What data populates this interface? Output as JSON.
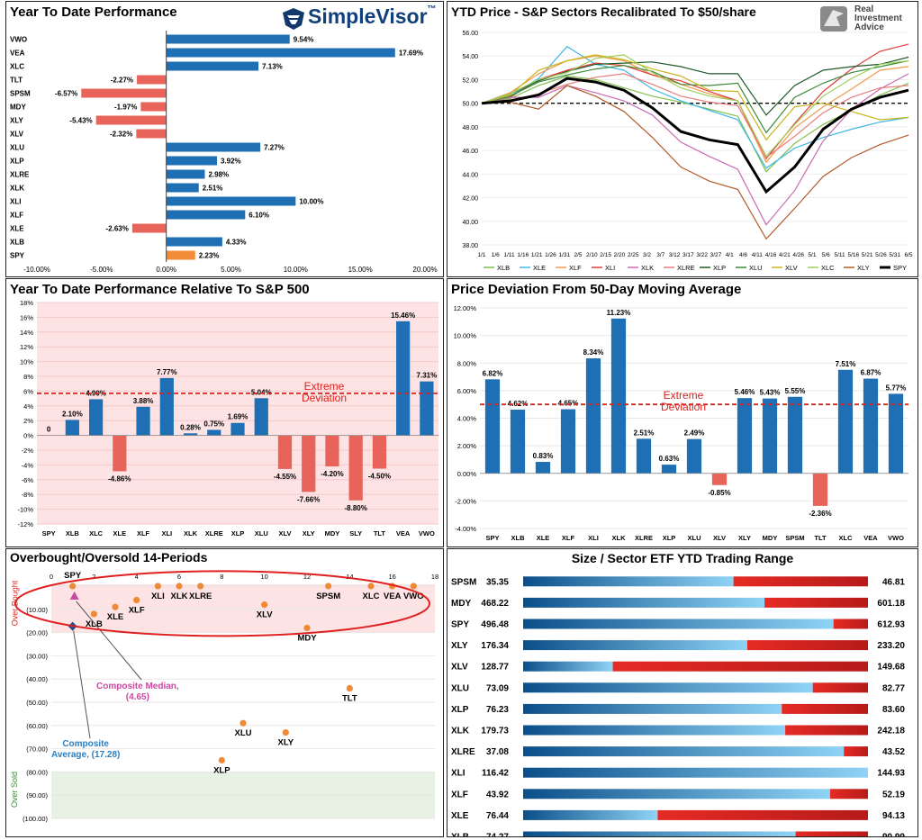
{
  "panels": {
    "ytd": {
      "title": "Year To Date Performance",
      "brand": "SimpleVisor",
      "brand_tm": "™"
    },
    "recal": {
      "title": "YTD Price - S&P Sectors Recalibrated To $50/share",
      "brand_line1": "Real",
      "brand_line2": "Investment",
      "brand_line3": "Advice"
    },
    "rel": {
      "title": "Year To Date Performance Relative To S&P 500",
      "extreme_line1": "Extreme",
      "extreme_line2": "Deviation"
    },
    "dev": {
      "title": "Price Deviation From 50-Day Moving Average",
      "extreme_line1": "Extreme",
      "extreme_line2": "Deviation"
    },
    "ob": {
      "title": "Overbought/Oversold 14-Periods",
      "side_top": "Over Bought",
      "side_bottom": "Over Sold",
      "median_line1": "Composite Median,",
      "median_line2": "(4.65)",
      "average_line1": "Composite",
      "average_line2": "Average,  (17.28)"
    },
    "range": {
      "title": "Size / Sector ETF YTD Trading Range"
    }
  },
  "colors": {
    "positive": "#1f6fb5",
    "negative": "#e8645a",
    "spy": "#f28c38",
    "extreme": "#e0201b",
    "overbought_zone": "#fde3e3",
    "oversold_zone": "#e7f1e4",
    "dot": "#ee8a35",
    "median": "#c84a9e",
    "average": "#2b7fc1",
    "range_red": "#e22a26"
  },
  "chart_data": [
    {
      "id": "ytd",
      "type": "bar",
      "orientation": "horizontal",
      "title": "Year To Date Performance",
      "categories": [
        "VWO",
        "VEA",
        "XLC",
        "TLT",
        "SPSM",
        "MDY",
        "XLY",
        "XLV",
        "XLU",
        "XLP",
        "XLRE",
        "XLK",
        "XLI",
        "XLF",
        "XLE",
        "XLB",
        "SPY"
      ],
      "values": [
        9.54,
        17.69,
        7.13,
        -2.27,
        -6.57,
        -1.97,
        -5.43,
        -2.32,
        7.27,
        3.92,
        2.98,
        2.51,
        10.0,
        6.1,
        -2.63,
        4.33,
        2.23
      ],
      "labels": [
        "9.54%",
        "17.69%",
        "7.13%",
        "-2.27%",
        "-6.57%",
        "-1.97%",
        "-5.43%",
        "-2.32%",
        "7.27%",
        "3.92%",
        "2.98%",
        "2.51%",
        "10.00%",
        "6.10%",
        "-2.63%",
        "4.33%",
        "2.23%"
      ],
      "xlim": [
        -10,
        20
      ],
      "xticks": [
        "-10.00%",
        "-5.00%",
        "0.00%",
        "5.00%",
        "10.00%",
        "15.00%",
        "20.00%"
      ]
    },
    {
      "id": "recal",
      "type": "line",
      "title": "YTD Price - S&P Sectors Recalibrated To $50/share",
      "ylim": [
        38,
        56
      ],
      "yticks": [
        "38.00",
        "40.00",
        "42.00",
        "44.00",
        "46.00",
        "48.00",
        "50.00",
        "52.00",
        "54.00",
        "56.00"
      ],
      "xticks": [
        "1/1",
        "1/6",
        "1/11",
        "1/16",
        "1/21",
        "1/26",
        "1/31",
        "2/5",
        "2/10",
        "2/15",
        "2/20",
        "2/25",
        "3/2",
        "3/7",
        "3/12",
        "3/17",
        "3/22",
        "3/27",
        "4/1",
        "4/6",
        "4/11",
        "4/16",
        "4/21",
        "4/26",
        "5/1",
        "5/6",
        "5/11",
        "5/16",
        "5/21",
        "5/26",
        "5/31",
        "6/5"
      ],
      "reference_line": 50,
      "series": [
        {
          "name": "XLB",
          "color": "#7fbf4d",
          "points": [
            50,
            50.4,
            51.5,
            52.3,
            52.0,
            51.3,
            50.6,
            50.1,
            49.5,
            48.9,
            44.2,
            46.6,
            48.2,
            49.4,
            50.7,
            51.7
          ]
        },
        {
          "name": "XLE",
          "color": "#3fb7e6",
          "points": [
            50,
            50.6,
            52.1,
            54.8,
            53.3,
            52.8,
            51.2,
            50.2,
            49.4,
            48.6,
            44.5,
            46.2,
            47.1,
            47.8,
            48.4,
            48.8
          ]
        },
        {
          "name": "XLF",
          "color": "#f2994a",
          "points": [
            50,
            50.9,
            52.5,
            53.6,
            54.0,
            53.6,
            52.4,
            51.6,
            50.8,
            50.2,
            45.0,
            47.9,
            49.7,
            51.2,
            52.8,
            53.1
          ]
        },
        {
          "name": "XLI",
          "color": "#e03c3c",
          "points": [
            50,
            50.5,
            52.0,
            52.8,
            53.4,
            53.2,
            52.4,
            51.9,
            51.0,
            50.2,
            45.3,
            48.3,
            51.0,
            52.9,
            54.4,
            55.0
          ]
        },
        {
          "name": "XLK",
          "color": "#c86bb0",
          "points": [
            50,
            50.5,
            50.5,
            51.5,
            50.9,
            50.2,
            49.0,
            46.7,
            45.5,
            44.4,
            39.7,
            42.6,
            46.8,
            49.5,
            51.2,
            52.5
          ]
        },
        {
          "name": "XLRE",
          "color": "#e97d7d",
          "points": [
            50,
            50.2,
            50.8,
            51.6,
            52.2,
            52.5,
            51.6,
            50.6,
            50.1,
            49.8,
            45.4,
            47.2,
            49.2,
            50.5,
            51.3,
            51.5
          ]
        },
        {
          "name": "XLP",
          "color": "#1f5a2a",
          "points": [
            50,
            50.8,
            51.9,
            52.7,
            53.3,
            53.4,
            53.5,
            53.1,
            52.5,
            52.5,
            49.0,
            51.5,
            52.8,
            53.1,
            53.3,
            53.9
          ]
        },
        {
          "name": "XLU",
          "color": "#3c8a3c",
          "points": [
            50,
            50.6,
            51.8,
            52.4,
            52.9,
            53.2,
            52.7,
            51.6,
            51.5,
            51.7,
            47.5,
            50.5,
            51.7,
            52.6,
            53.1,
            53.6
          ]
        },
        {
          "name": "XLV",
          "color": "#c9b51d",
          "points": [
            50,
            50.7,
            52.8,
            53.6,
            54.1,
            53.7,
            52.9,
            52.3,
            51.1,
            51.0,
            46.9,
            49.7,
            50.0,
            49.3,
            48.6,
            48.8
          ]
        },
        {
          "name": "XLC",
          "color": "#9ccf5a",
          "points": [
            50,
            50.8,
            52.0,
            52.6,
            53.8,
            54.1,
            52.6,
            51.3,
            50.6,
            50.2,
            45.5,
            48.2,
            50.6,
            52.1,
            53.3,
            53.6
          ]
        },
        {
          "name": "XLY",
          "color": "#b35a2a",
          "points": [
            50,
            50.1,
            49.5,
            51.5,
            50.6,
            49.3,
            47.1,
            44.6,
            43.4,
            42.7,
            38.5,
            41.1,
            43.8,
            45.4,
            46.5,
            47.3
          ]
        },
        {
          "name": "SPY",
          "color": "#000000",
          "points": [
            50,
            50.2,
            50.7,
            52.1,
            51.8,
            51.1,
            49.6,
            47.6,
            46.9,
            46.5,
            42.5,
            44.6,
            47.8,
            49.5,
            50.5,
            51.1
          ]
        }
      ],
      "legend": [
        "XLB",
        "XLE",
        "XLF",
        "XLI",
        "XLK",
        "XLRE",
        "XLP",
        "XLU",
        "XLV",
        "XLC",
        "XLY",
        "SPY"
      ]
    },
    {
      "id": "rel",
      "type": "bar",
      "title": "Year To Date Performance Relative To S&P 500",
      "categories": [
        "SPY",
        "XLB",
        "XLC",
        "XLE",
        "XLF",
        "XLI",
        "XLK",
        "XLRE",
        "XLP",
        "XLU",
        "XLV",
        "XLY",
        "MDY",
        "SLY",
        "TLT",
        "VEA",
        "VWO"
      ],
      "values": [
        0,
        2.1,
        4.9,
        -4.86,
        3.88,
        7.77,
        0.28,
        0.75,
        1.69,
        5.04,
        -4.55,
        -7.66,
        -4.2,
        -8.8,
        -4.5,
        15.46,
        7.31
      ],
      "labels": [
        "0",
        "2.10%",
        "4.90%",
        "-4.86%",
        "3.88%",
        "7.77%",
        "0.28%",
        "0.75%",
        "1.69%",
        "5.04%",
        "-4.55%",
        "-7.66%",
        "-4.20%",
        "-8.80%",
        "-4.50%",
        "15.46%",
        "7.31%"
      ],
      "ylim": [
        -12,
        18
      ],
      "yticks": [
        "-12%",
        "-10%",
        "-8%",
        "-6%",
        "-4%",
        "-2%",
        "0%",
        "2%",
        "4%",
        "6%",
        "8%",
        "10%",
        "12%",
        "14%",
        "16%",
        "18%"
      ],
      "extreme_level": 5.7
    },
    {
      "id": "dev",
      "type": "bar",
      "title": "Price Deviation From 50-Day Moving Average",
      "categories": [
        "SPY",
        "XLB",
        "XLE",
        "XLF",
        "XLI",
        "XLK",
        "XLRE",
        "XLP",
        "XLU",
        "XLV",
        "XLY",
        "MDY",
        "SPSM",
        "TLT",
        "XLC",
        "VEA",
        "VWO"
      ],
      "values": [
        6.82,
        4.62,
        0.83,
        4.65,
        8.34,
        11.23,
        2.51,
        0.63,
        2.49,
        -0.85,
        5.46,
        5.43,
        5.55,
        -2.36,
        7.51,
        6.87,
        5.77
      ],
      "labels": [
        "6.82%",
        "4.62%",
        "0.83%",
        "4.65%",
        "8.34%",
        "11.23%",
        "2.51%",
        "0.63%",
        "2.49%",
        "-0.85%",
        "5.46%",
        "5.43%",
        "5.55%",
        "-2.36%",
        "7.51%",
        "6.87%",
        "5.77%"
      ],
      "ylim": [
        -4,
        12
      ],
      "yticks": [
        "-4.00%",
        "-2.00%",
        "0.00%",
        "2.00%",
        "4.00%",
        "6.00%",
        "8.00%",
        "10.00%",
        "12.00%"
      ],
      "extreme_level": 5.0
    },
    {
      "id": "ob",
      "type": "scatter",
      "title": "Overbought/Oversold 14-Periods",
      "xlim": [
        0,
        18
      ],
      "xticks": [
        "0",
        "2",
        "4",
        "6",
        "8",
        "10",
        "12",
        "14",
        "16",
        "18"
      ],
      "ylim": [
        0,
        100
      ],
      "yticks": [
        "-",
        "(10.00)",
        "(20.00)",
        "(30.00)",
        "(40.00)",
        "(50.00)",
        "(60.00)",
        "(70.00)",
        "(80.00)",
        "(90.00)",
        "(100.00)"
      ],
      "points": [
        {
          "label": "SPY",
          "x": 1,
          "y": 0
        },
        {
          "label": "XLB",
          "x": 2,
          "y": 12
        },
        {
          "label": "XLE",
          "x": 3,
          "y": 9
        },
        {
          "label": "XLF",
          "x": 4,
          "y": 6
        },
        {
          "label": "XLI",
          "x": 5,
          "y": 0
        },
        {
          "label": "XLK",
          "x": 6,
          "y": 0
        },
        {
          "label": "XLRE",
          "x": 7,
          "y": 0
        },
        {
          "label": "XLP",
          "x": 8,
          "y": 75
        },
        {
          "label": "XLU",
          "x": 9,
          "y": 59
        },
        {
          "label": "XLV",
          "x": 10,
          "y": 8
        },
        {
          "label": "XLY",
          "x": 11,
          "y": 63
        },
        {
          "label": "MDY",
          "x": 12,
          "y": 18
        },
        {
          "label": "SPSM",
          "x": 13,
          "y": 0
        },
        {
          "label": "TLT",
          "x": 14,
          "y": 44
        },
        {
          "label": "XLC",
          "x": 15,
          "y": 0
        },
        {
          "label": "VEA",
          "x": 16,
          "y": 0
        },
        {
          "label": "VWO",
          "x": 17,
          "y": 0
        }
      ],
      "median": {
        "x": 1,
        "y": 4.65
      },
      "average": {
        "x": 1,
        "y": 17.28
      }
    },
    {
      "id": "range",
      "type": "bar",
      "title": "Size / Sector ETF YTD Trading Range",
      "rows": [
        {
          "ticker": "SPSM",
          "low": "35.35",
          "high": "46.81",
          "fraction": 0.61
        },
        {
          "ticker": "MDY",
          "low": "468.22",
          "high": "601.18",
          "fraction": 0.7
        },
        {
          "ticker": "SPY",
          "low": "496.48",
          "high": "612.93",
          "fraction": 0.9
        },
        {
          "ticker": "XLY",
          "low": "176.34",
          "high": "233.20",
          "fraction": 0.65
        },
        {
          "ticker": "XLV",
          "low": "128.77",
          "high": "149.68",
          "fraction": 0.26
        },
        {
          "ticker": "XLU",
          "low": "73.09",
          "high": "82.77",
          "fraction": 0.84
        },
        {
          "ticker": "XLP",
          "low": "76.23",
          "high": "83.60",
          "fraction": 0.75
        },
        {
          "ticker": "XLK",
          "low": "179.73",
          "high": "242.18",
          "fraction": 0.76
        },
        {
          "ticker": "XLRE",
          "low": "37.08",
          "high": "43.52",
          "fraction": 0.93
        },
        {
          "ticker": "XLI",
          "low": "116.42",
          "high": "144.93",
          "fraction": 1.0
        },
        {
          "ticker": "XLF",
          "low": "43.92",
          "high": "52.19",
          "fraction": 0.89
        },
        {
          "ticker": "XLE",
          "low": "76.44",
          "high": "94.13",
          "fraction": 0.39
        },
        {
          "ticker": "XLB",
          "low": "74.27",
          "high": "90.99",
          "fraction": 0.79
        }
      ]
    }
  ]
}
